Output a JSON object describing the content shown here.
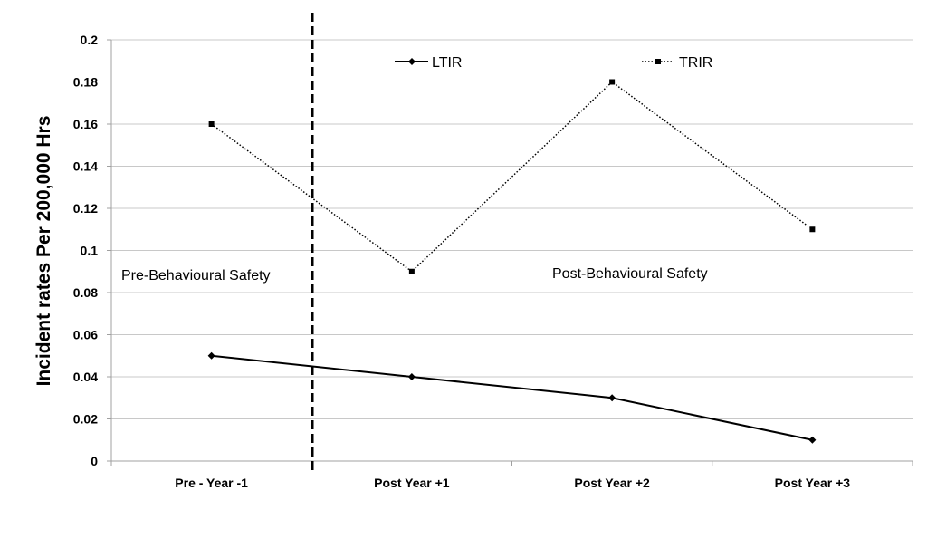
{
  "chart_data": {
    "type": "line",
    "title": "",
    "xlabel": "",
    "ylabel": "Incident rates Per 200,000 Hrs",
    "categories": [
      "Pre - Year -1",
      "Post Year +1",
      "Post Year +2",
      "Post Year +3"
    ],
    "ylim": [
      0,
      0.2
    ],
    "yticks": [
      "0",
      "0.02",
      "0.04",
      "0.06",
      "0.08",
      "0.1",
      "0.12",
      "0.14",
      "0.16",
      "0.18",
      "0.2"
    ],
    "grid": true,
    "legend_position": "top",
    "series": [
      {
        "name": "LTIR",
        "values": [
          0.05,
          0.04,
          0.03,
          0.01
        ],
        "style": "solid",
        "marker": "diamond",
        "color": "#000000"
      },
      {
        "name": "TRIR",
        "values": [
          0.16,
          0.09,
          0.18,
          0.11
        ],
        "style": "dotted",
        "marker": "square",
        "color": "#000000"
      }
    ],
    "divider": {
      "between": [
        "Pre - Year -1",
        "Post Year +1"
      ],
      "style": "dashed"
    },
    "annotations": [
      "Pre-Behavioural Safety",
      "Post-Behavioural Safety"
    ]
  }
}
